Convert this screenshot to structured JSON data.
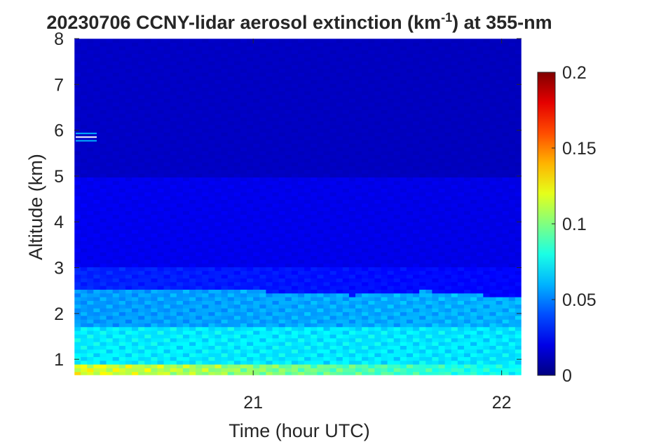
{
  "chart_data": {
    "type": "heatmap",
    "title_main": "20230706 CCNY-lidar aerosol extinction (km",
    "title_sup": "-1",
    "title_tail": ") at 355-nm",
    "xlabel": "Time (hour UTC)",
    "ylabel": "Altitude (km)",
    "xlim": [
      20.28,
      22.08
    ],
    "ylim": [
      0.65,
      8
    ],
    "xticks": [
      21,
      22
    ],
    "xtick_labels": [
      "21",
      "22"
    ],
    "yticks": [
      1,
      2,
      3,
      4,
      5,
      6,
      7,
      8
    ],
    "ytick_labels": [
      "1",
      "2",
      "3",
      "4",
      "5",
      "6",
      "7",
      "8"
    ],
    "colorbar": {
      "colormap": "jet",
      "limits": [
        0,
        0.2
      ],
      "ticks": [
        0,
        0.05,
        0.1,
        0.15,
        0.2
      ],
      "tick_labels": [
        "0",
        "0.05",
        "0.1",
        "0.15",
        "0.2"
      ]
    },
    "layers": [
      {
        "altitude_km": [
          0.65,
          0.9
        ],
        "extinction_km-1_start": 0.12,
        "extinction_km-1_end": 0.075
      },
      {
        "altitude_km": [
          0.9,
          1.7
        ],
        "extinction_km-1_start": 0.072,
        "extinction_km-1_end": 0.07
      },
      {
        "altitude_km": [
          1.7,
          2.5
        ],
        "extinction_km-1_start": 0.055,
        "extinction_km-1_end": 0.06
      },
      {
        "altitude_km": [
          2.5,
          3.0
        ],
        "extinction_km-1_start": 0.032,
        "extinction_km-1_end": 0.025
      },
      {
        "altitude_km": [
          3.0,
          5.0
        ],
        "extinction_km-1_start": 0.022,
        "extinction_km-1_end": 0.02
      },
      {
        "altitude_km": [
          5.0,
          8.0
        ],
        "extinction_km-1_start": 0.014,
        "extinction_km-1_end": 0.012
      }
    ],
    "mixing_layer_top_km": [
      {
        "time": 20.28,
        "altitude_km": 2.55
      },
      {
        "time": 21.0,
        "altitude_km": 2.5
      },
      {
        "time": 21.4,
        "altitude_km": 2.4
      },
      {
        "time": 21.7,
        "altitude_km": 2.5
      },
      {
        "time": 22.08,
        "altitude_km": 2.35
      }
    ],
    "features": [
      {
        "time": 20.33,
        "altitude_km": 5.85,
        "extinction_km-1": 0.06
      }
    ]
  }
}
